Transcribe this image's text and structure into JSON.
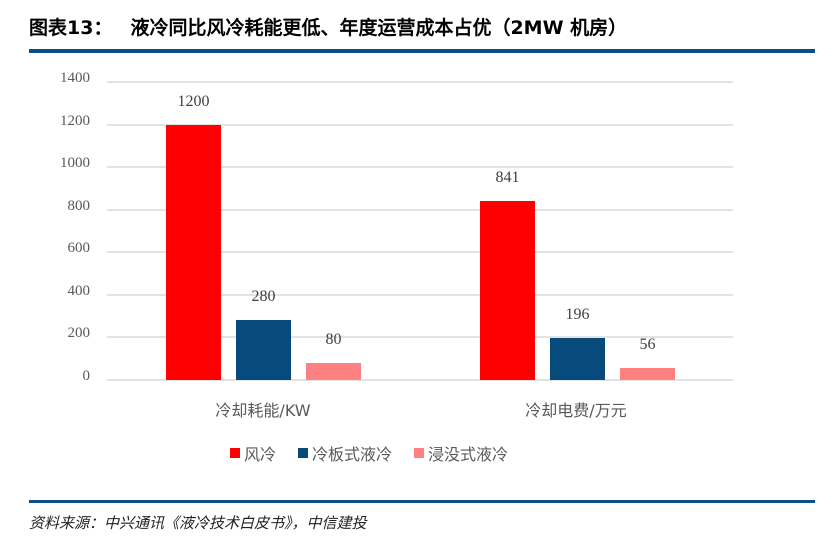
{
  "header": {
    "figure_number": "图表13：",
    "title": "液冷同比风冷耗能更低、年度运营成本占优（2MW 机房）"
  },
  "footer": {
    "source": "资料来源：中兴通讯《液冷技术白皮书》，中信建投"
  },
  "colors": {
    "air_cooling": "#ff0000",
    "cold_plate": "#064b7c",
    "immersion": "#ff8080",
    "rule": "#0b4f86",
    "grid": "#e3e3e3"
  },
  "chart_data": {
    "type": "bar",
    "title": "液冷同比风冷耗能更低、年度运营成本占优（2MW 机房）",
    "categories": [
      "冷却耗能/KW",
      "冷却电费/万元"
    ],
    "series": [
      {
        "name": "风冷",
        "color": "#ff0000",
        "values": [
          1200,
          841
        ]
      },
      {
        "name": "冷板式液冷",
        "color": "#064b7c",
        "values": [
          280,
          196
        ]
      },
      {
        "name": "浸没式液冷",
        "color": "#ff8080",
        "values": [
          80,
          56
        ]
      }
    ],
    "xlabel": "",
    "ylabel": "",
    "ylim": [
      0,
      1400
    ],
    "yticks": [
      "0",
      "200",
      "400",
      "600",
      "800",
      "1000",
      "1200",
      "1400"
    ],
    "grid": true,
    "legend_position": "bottom",
    "data_labels": [
      "1200",
      "280",
      "80",
      "841",
      "196",
      "56"
    ]
  },
  "legend": [
    {
      "label": "风冷"
    },
    {
      "label": "冷板式液冷"
    },
    {
      "label": "浸没式液冷"
    }
  ]
}
